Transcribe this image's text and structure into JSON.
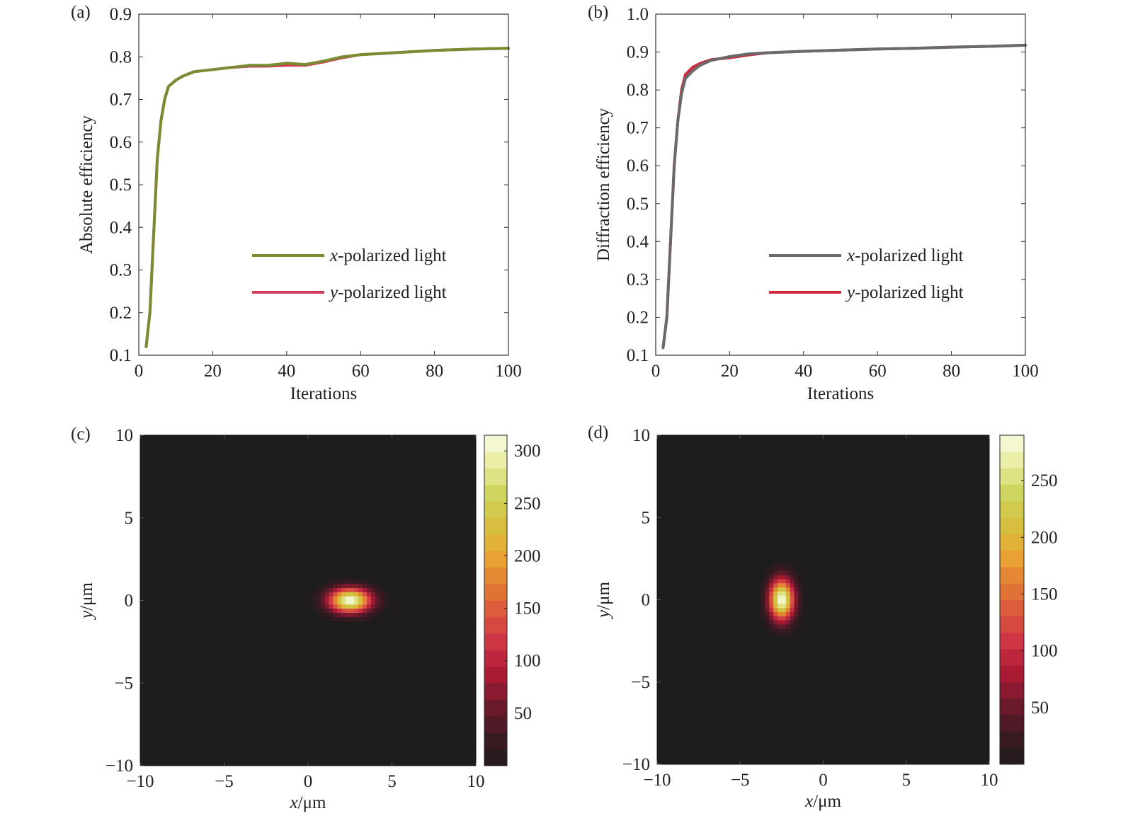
{
  "chart_data": [
    {
      "panel": "(a)",
      "type": "line",
      "xlabel": "Iterations",
      "ylabel": "Absolute efficiency",
      "xlim": [
        0,
        100
      ],
      "ylim": [
        0.1,
        0.9
      ],
      "xticks": [
        "0",
        "20",
        "40",
        "60",
        "80",
        "100"
      ],
      "yticks": [
        "0.1",
        "0.2",
        "0.3",
        "0.4",
        "0.5",
        "0.6",
        "0.7",
        "0.8",
        "0.9"
      ],
      "legend_position": "center-right",
      "series": [
        {
          "name_prefix": "x",
          "name_suffix": "-polarized light",
          "color": "#7a8c32",
          "x": [
            2,
            3,
            4,
            5,
            6,
            7,
            8,
            10,
            12,
            15,
            20,
            25,
            30,
            35,
            40,
            45,
            50,
            55,
            60,
            70,
            80,
            90,
            100
          ],
          "y": [
            0.12,
            0.2,
            0.38,
            0.56,
            0.65,
            0.7,
            0.73,
            0.745,
            0.755,
            0.765,
            0.77,
            0.775,
            0.78,
            0.78,
            0.785,
            0.782,
            0.79,
            0.8,
            0.805,
            0.81,
            0.815,
            0.818,
            0.82
          ]
        },
        {
          "name_prefix": "y",
          "name_suffix": "-polarized light",
          "color": "#d23a5a",
          "x": [
            2,
            3,
            4,
            5,
            6,
            7,
            8,
            10,
            12,
            15,
            20,
            25,
            30,
            35,
            40,
            45,
            50,
            55,
            60,
            70,
            80,
            90,
            100
          ],
          "y": [
            0.12,
            0.2,
            0.38,
            0.56,
            0.65,
            0.7,
            0.73,
            0.745,
            0.755,
            0.765,
            0.77,
            0.775,
            0.778,
            0.778,
            0.78,
            0.78,
            0.788,
            0.798,
            0.805,
            0.81,
            0.815,
            0.818,
            0.82
          ]
        }
      ]
    },
    {
      "panel": "(b)",
      "type": "line",
      "xlabel": "Iterations",
      "ylabel": "Diffraction efficiency",
      "xlim": [
        0,
        100
      ],
      "ylim": [
        0.1,
        1.0
      ],
      "xticks": [
        "0",
        "20",
        "40",
        "60",
        "80",
        "100"
      ],
      "yticks": [
        "0.1",
        "0.2",
        "0.3",
        "0.4",
        "0.5",
        "0.6",
        "0.7",
        "0.8",
        "0.9",
        "1.0"
      ],
      "legend_position": "center-right",
      "series": [
        {
          "name_prefix": "x",
          "name_suffix": "-polarized light",
          "color": "#6a6a6a",
          "x": [
            2,
            3,
            4,
            5,
            6,
            7,
            8,
            10,
            12,
            15,
            20,
            25,
            30,
            40,
            50,
            60,
            70,
            80,
            90,
            100
          ],
          "y": [
            0.12,
            0.2,
            0.4,
            0.6,
            0.72,
            0.79,
            0.83,
            0.85,
            0.865,
            0.878,
            0.888,
            0.895,
            0.898,
            0.902,
            0.905,
            0.908,
            0.91,
            0.913,
            0.915,
            0.918
          ]
        },
        {
          "name_prefix": "y",
          "name_suffix": "-polarized light",
          "color": "#d2283c",
          "x": [
            2,
            3,
            4,
            5,
            6,
            7,
            8,
            10,
            12,
            15,
            20,
            25,
            30,
            40,
            50,
            60,
            70,
            80,
            90,
            100
          ],
          "y": [
            0.12,
            0.2,
            0.4,
            0.6,
            0.72,
            0.8,
            0.84,
            0.86,
            0.87,
            0.88,
            0.885,
            0.892,
            0.898,
            0.902,
            0.905,
            0.908,
            0.91,
            0.913,
            0.915,
            0.918
          ]
        }
      ]
    },
    {
      "panel": "(c)",
      "type": "heatmap",
      "xlabel_prefix": "x",
      "xlabel_suffix": "/μm",
      "ylabel_prefix": "y",
      "ylabel_suffix": "/μm",
      "xlim": [
        -10,
        10
      ],
      "ylim": [
        -10,
        10
      ],
      "xticks": [
        "−10",
        "−5",
        "0",
        "5",
        "10"
      ],
      "yticks": [
        "10",
        "5",
        "0",
        "−5",
        "−10"
      ],
      "background_color": "#1f1c1d",
      "spot": {
        "cx": 2.5,
        "cy": 0,
        "sx": 0.85,
        "sy": 0.5,
        "peak": 315
      },
      "colorbar": {
        "min": 0,
        "max": 315,
        "ticks": [
          "300",
          "250",
          "200",
          "150",
          "100",
          "50"
        ]
      }
    },
    {
      "panel": "(d)",
      "type": "heatmap",
      "xlabel_prefix": "x",
      "xlabel_suffix": "/μm",
      "ylabel_prefix": "y",
      "ylabel_suffix": "/μm",
      "xlim": [
        -10,
        10
      ],
      "ylim": [
        -10,
        10
      ],
      "xticks": [
        "−10",
        "−5",
        "0",
        "5",
        "10"
      ],
      "yticks": [
        "10",
        "5",
        "0",
        "−5",
        "−10"
      ],
      "background_color": "#1f1c1d",
      "spot": {
        "cx": -2.5,
        "cy": 0,
        "sx": 0.5,
        "sy": 0.85,
        "peak": 290
      },
      "colorbar": {
        "min": 0,
        "max": 290,
        "ticks": [
          "250",
          "200",
          "150",
          "100",
          "50"
        ]
      }
    }
  ],
  "colormap": [
    "#1f1b1c",
    "#3d1a22",
    "#6e1a2c",
    "#a81a33",
    "#cc3046",
    "#d9553f",
    "#e27a33",
    "#e9a632",
    "#d5bf3f",
    "#cdd45b",
    "#e6eb9a",
    "#fbfbe6"
  ]
}
